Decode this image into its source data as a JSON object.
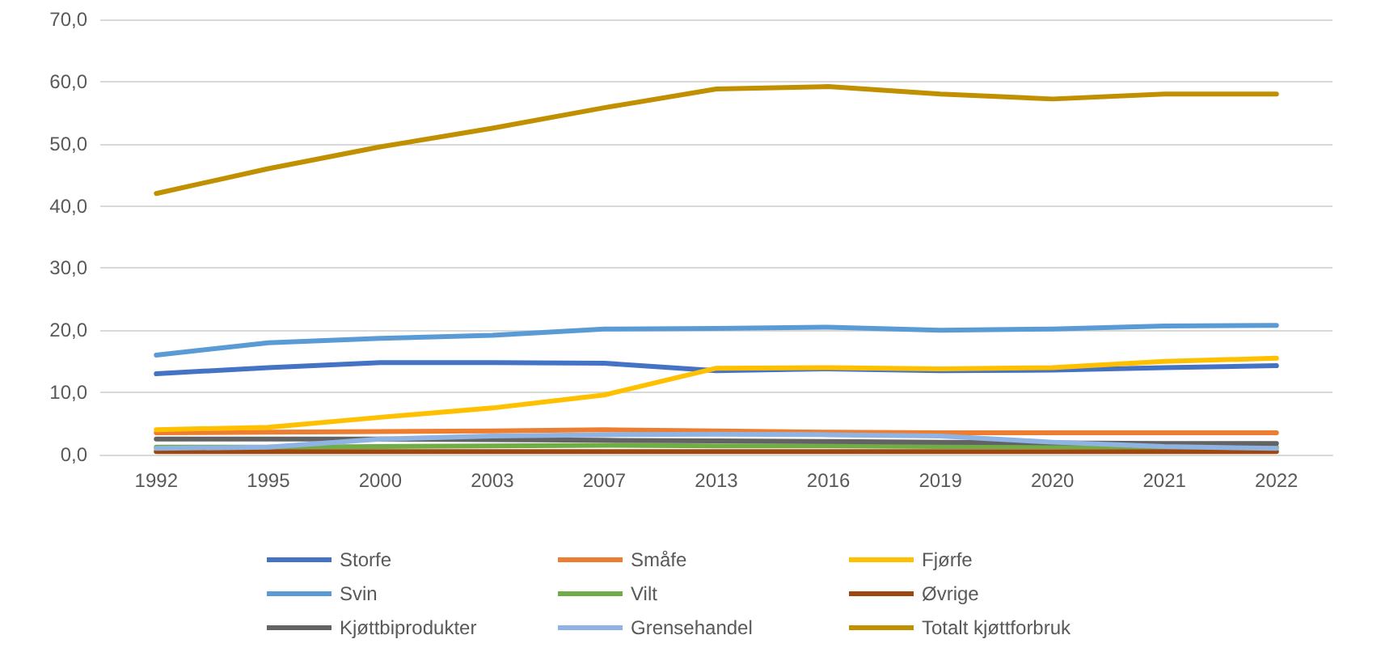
{
  "chart_data": {
    "type": "line",
    "categories": [
      "1992",
      "1995",
      "2000",
      "2003",
      "2007",
      "2013",
      "2016",
      "2019",
      "2020",
      "2021",
      "2022"
    ],
    "series": [
      {
        "name": "Storfe",
        "color": "#4472c4",
        "values": [
          13,
          14,
          14.8,
          14.8,
          14.7,
          13.5,
          13.8,
          13.5,
          13.6,
          14,
          14.3
        ]
      },
      {
        "name": "Småfe",
        "color": "#ed7d31",
        "values": [
          3.5,
          3.6,
          3.7,
          3.8,
          4,
          3.8,
          3.6,
          3.5,
          3.5,
          3.5,
          3.5
        ]
      },
      {
        "name": "Fjørfe",
        "color": "#ffc000",
        "values": [
          4,
          4.4,
          6,
          7.5,
          9.6,
          13.9,
          14,
          13.8,
          14,
          15,
          15.5
        ]
      },
      {
        "name": "Svin",
        "color": "#5b9bd5",
        "values": [
          16,
          18,
          18.7,
          19.2,
          20.2,
          20.3,
          20.5,
          20,
          20.2,
          20.7,
          20.8
        ]
      },
      {
        "name": "Vilt",
        "color": "#70ad47",
        "values": [
          1.2,
          1.2,
          1.3,
          1.4,
          1.5,
          1.4,
          1.4,
          1.3,
          1.3,
          1.2,
          1.2
        ]
      },
      {
        "name": "Øvrige",
        "color": "#9e480e",
        "values": [
          0.5,
          0.5,
          0.5,
          0.5,
          0.5,
          0.5,
          0.5,
          0.5,
          0.5,
          0.5,
          0.5
        ]
      },
      {
        "name": "Kjøttbiprodukter",
        "color": "#636363",
        "values": [
          2.5,
          2.5,
          2.5,
          2.4,
          2.3,
          2.2,
          2.1,
          2,
          1.9,
          1.8,
          1.8
        ]
      },
      {
        "name": "Grensehandel",
        "color": "#8fb4e3",
        "values": [
          1,
          1.2,
          2.5,
          3,
          3.2,
          3.3,
          3.2,
          3,
          2,
          1.3,
          1
        ]
      },
      {
        "name": "Totalt kjøttforbruk",
        "color": "#c09000",
        "values": [
          42,
          46,
          49.5,
          52.5,
          55.8,
          58.8,
          59.2,
          58,
          57.2,
          58,
          58
        ]
      }
    ],
    "ylim": [
      0,
      70
    ],
    "yticks": [
      {
        "value": 0,
        "label": "0,0"
      },
      {
        "value": 10,
        "label": "10,0"
      },
      {
        "value": 20,
        "label": "20,0"
      },
      {
        "value": 30,
        "label": "30,0"
      },
      {
        "value": 40,
        "label": "40,0"
      },
      {
        "value": 50,
        "label": "50,0"
      },
      {
        "value": 60,
        "label": "60,0"
      },
      {
        "value": 70,
        "label": "70,0"
      }
    ],
    "grid": "y",
    "legend": "bottom",
    "marker": "none",
    "line_style": "solid"
  }
}
